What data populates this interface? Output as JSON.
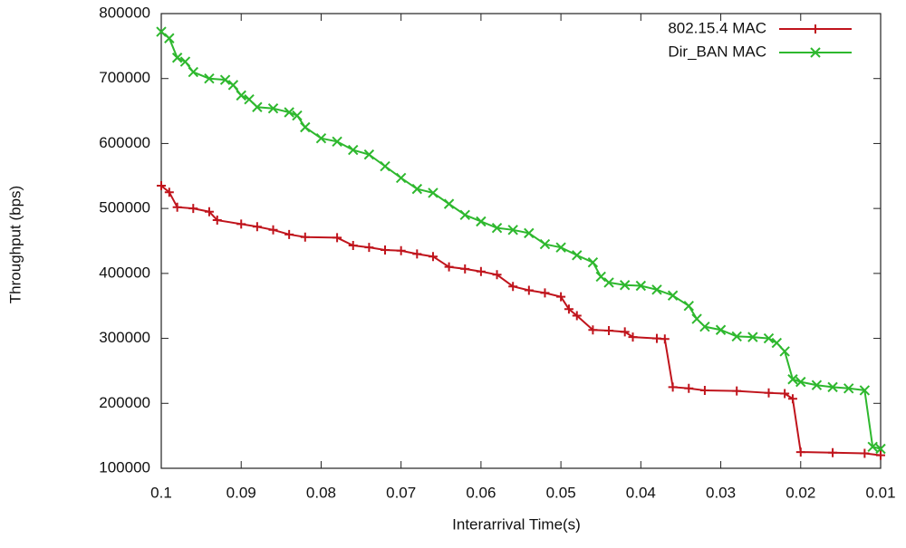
{
  "chart_data": {
    "type": "line",
    "x_label": "Interarrival Time(s)",
    "y_label": "Throughput (bps)",
    "xlim": [
      0.1,
      0.01
    ],
    "xticks": [
      0.1,
      0.09,
      0.08,
      0.07,
      0.06,
      0.05,
      0.04,
      0.03,
      0.02,
      0.01
    ],
    "ylim": [
      100000,
      800000
    ],
    "yticks": [
      100000,
      200000,
      300000,
      400000,
      500000,
      600000,
      700000,
      800000
    ],
    "legend": "top-right",
    "series": [
      {
        "name": "802.15.4 MAC",
        "color": "#c0141c",
        "marker": "plus",
        "x": [
          0.1,
          0.099,
          0.098,
          0.096,
          0.094,
          0.093,
          0.09,
          0.088,
          0.086,
          0.084,
          0.082,
          0.078,
          0.076,
          0.074,
          0.072,
          0.07,
          0.068,
          0.066,
          0.064,
          0.062,
          0.06,
          0.058,
          0.056,
          0.054,
          0.052,
          0.05,
          0.049,
          0.048,
          0.046,
          0.044,
          0.042,
          0.041,
          0.038,
          0.037,
          0.036,
          0.034,
          0.032,
          0.028,
          0.024,
          0.022,
          0.021,
          0.02,
          0.016,
          0.012,
          0.01
        ],
        "values": [
          535000,
          525000,
          502000,
          500000,
          495000,
          482000,
          476000,
          472000,
          467000,
          460000,
          456000,
          455000,
          443000,
          440000,
          436000,
          435000,
          430000,
          426000,
          410000,
          407000,
          403000,
          398000,
          380000,
          374000,
          370000,
          364000,
          345000,
          335000,
          313000,
          312000,
          310000,
          302000,
          300000,
          299000,
          225000,
          223000,
          220000,
          219000,
          216000,
          215000,
          207000,
          125000,
          124000,
          123000,
          120000
        ]
      },
      {
        "name": "Dir_BAN MAC",
        "color": "#2eb82e",
        "marker": "cross",
        "x": [
          0.1,
          0.099,
          0.098,
          0.097,
          0.096,
          0.094,
          0.092,
          0.091,
          0.09,
          0.089,
          0.088,
          0.086,
          0.084,
          0.083,
          0.082,
          0.08,
          0.078,
          0.076,
          0.074,
          0.072,
          0.07,
          0.068,
          0.066,
          0.064,
          0.062,
          0.06,
          0.058,
          0.056,
          0.054,
          0.052,
          0.05,
          0.048,
          0.046,
          0.045,
          0.044,
          0.042,
          0.04,
          0.038,
          0.036,
          0.034,
          0.033,
          0.032,
          0.03,
          0.028,
          0.026,
          0.024,
          0.023,
          0.022,
          0.021,
          0.02,
          0.018,
          0.016,
          0.014,
          0.012,
          0.011,
          0.01
        ],
        "values": [
          772000,
          762000,
          732000,
          726000,
          710000,
          700000,
          698000,
          690000,
          674000,
          668000,
          656000,
          654000,
          648000,
          643000,
          625000,
          608000,
          603000,
          590000,
          583000,
          565000,
          547000,
          530000,
          524000,
          507000,
          490000,
          480000,
          470000,
          467000,
          462000,
          445000,
          440000,
          428000,
          417000,
          395000,
          386000,
          382000,
          381000,
          375000,
          366000,
          350000,
          330000,
          318000,
          313000,
          303000,
          302000,
          300000,
          293000,
          280000,
          237000,
          233000,
          228000,
          225000,
          223000,
          220000,
          133000,
          130000
        ]
      }
    ]
  }
}
